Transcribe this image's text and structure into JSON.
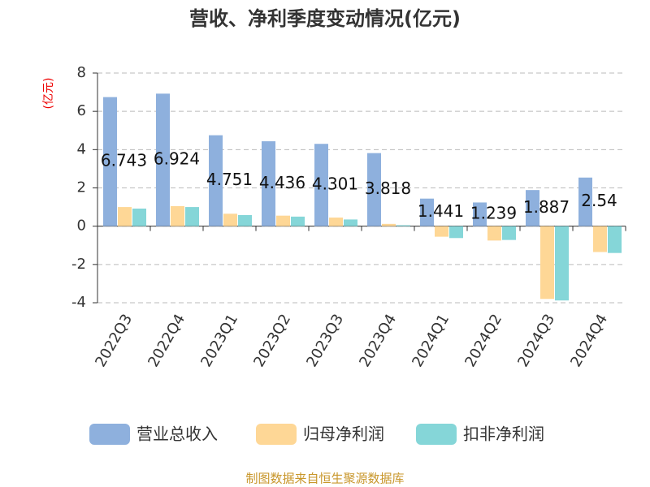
{
  "chart_data": {
    "type": "bar",
    "title": "营收、净利季度变动情况(亿元)",
    "y_axis_label": "(亿元)",
    "source": "制图数据来自恒生聚源数据库",
    "categories": [
      "2022Q3",
      "2022Q4",
      "2023Q1",
      "2023Q2",
      "2023Q3",
      "2023Q4",
      "2024Q1",
      "2024Q2",
      "2024Q3",
      "2024Q4"
    ],
    "series": [
      {
        "name": "营业总收入",
        "color": "#8eb0dd",
        "values": [
          6.743,
          6.924,
          4.751,
          4.436,
          4.301,
          3.818,
          1.441,
          1.239,
          1.887,
          2.54
        ]
      },
      {
        "name": "归母净利润",
        "color": "#fed796",
        "values": [
          1.0,
          1.05,
          0.65,
          0.55,
          0.45,
          0.12,
          -0.55,
          -0.75,
          -3.8,
          -1.35
        ]
      },
      {
        "name": "扣非净利润",
        "color": "#85d6d8",
        "values": [
          0.92,
          1.0,
          0.58,
          0.5,
          0.35,
          0.05,
          -0.62,
          -0.72,
          -3.88,
          -1.4
        ]
      }
    ],
    "ylim": [
      -4,
      8
    ],
    "yticks": [
      -4,
      -2,
      0,
      2,
      4,
      6,
      8
    ],
    "grid": true
  }
}
